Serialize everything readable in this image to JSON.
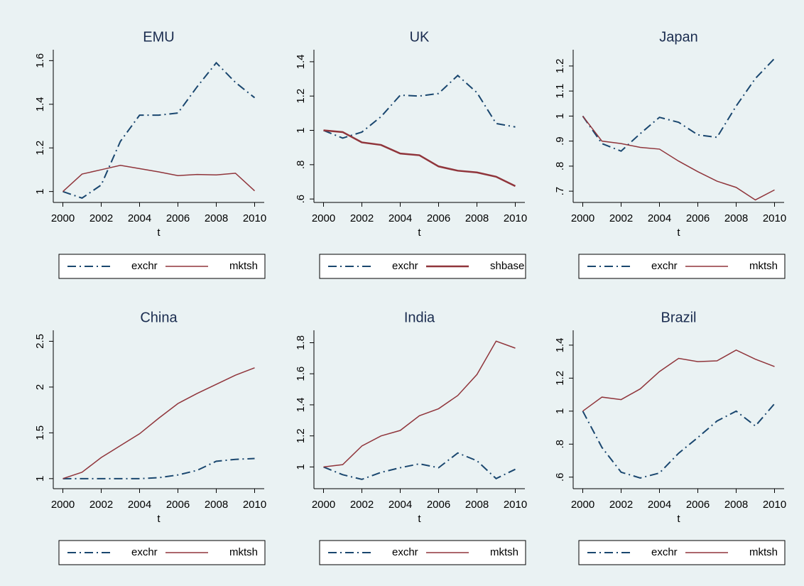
{
  "chart_data": [
    {
      "type": "line",
      "title": "EMU",
      "xlabel": "t",
      "x": [
        2000,
        2001,
        2002,
        2003,
        2004,
        2005,
        2006,
        2007,
        2008,
        2009,
        2010
      ],
      "series": [
        {
          "name": "exchr",
          "color": "#1a476f",
          "style": "dashdot",
          "values": [
            1.0,
            0.97,
            1.03,
            1.23,
            1.35,
            1.35,
            1.36,
            1.48,
            1.59,
            1.5,
            1.43
          ]
        },
        {
          "name": "mktsh",
          "color": "#90353b",
          "style": "solid",
          "values": [
            1.0,
            1.08,
            1.1,
            1.12,
            1.105,
            1.09,
            1.073,
            1.078,
            1.076,
            1.084,
            1.003
          ]
        }
      ],
      "xlim": [
        1999.5,
        2010.5
      ],
      "ylim": [
        0.95,
        1.65
      ],
      "xticks": [
        2000,
        2002,
        2004,
        2006,
        2008,
        2010
      ],
      "yticks": [
        1,
        1.2,
        1.4,
        1.6
      ]
    },
    {
      "type": "line",
      "title": "UK",
      "xlabel": "t",
      "x": [
        2000,
        2001,
        2002,
        2003,
        2004,
        2005,
        2006,
        2007,
        2008,
        2009,
        2010
      ],
      "series": [
        {
          "name": "exchr",
          "color": "#1a476f",
          "style": "dashdot",
          "values": [
            1.0,
            0.955,
            0.99,
            1.08,
            1.205,
            1.2,
            1.215,
            1.32,
            1.22,
            1.04,
            1.02
          ]
        },
        {
          "name": "shbase",
          "color": "#90353b",
          "style": "thick",
          "values": [
            1.0,
            0.99,
            0.93,
            0.915,
            0.865,
            0.855,
            0.79,
            0.765,
            0.755,
            0.73,
            0.675
          ]
        }
      ],
      "xlim": [
        1999.5,
        2010.5
      ],
      "ylim": [
        0.58,
        1.47
      ],
      "xticks": [
        2000,
        2002,
        2004,
        2006,
        2008,
        2010
      ],
      "yticks": [
        {
          "value": 0.6,
          "label": ".6"
        },
        {
          "value": 0.8,
          "label": ".8"
        },
        1,
        1.2,
        1.4
      ]
    },
    {
      "type": "line",
      "title": "Japan",
      "xlabel": "t",
      "x": [
        2000,
        2001,
        2002,
        2003,
        2004,
        2005,
        2006,
        2007,
        2008,
        2009,
        2010
      ],
      "series": [
        {
          "name": "exchr",
          "color": "#1a476f",
          "style": "dashdot",
          "values": [
            1.0,
            0.89,
            0.86,
            0.93,
            0.995,
            0.975,
            0.925,
            0.915,
            1.04,
            1.15,
            1.23
          ]
        },
        {
          "name": "mktsh",
          "color": "#90353b",
          "style": "solid",
          "values": [
            1.0,
            0.9,
            0.89,
            0.875,
            0.868,
            0.82,
            0.778,
            0.74,
            0.715,
            0.665,
            0.705
          ]
        }
      ],
      "xlim": [
        1999.5,
        2010.5
      ],
      "ylim": [
        0.655,
        1.265
      ],
      "xticks": [
        2000,
        2002,
        2004,
        2006,
        2008,
        2010
      ],
      "yticks": [
        {
          "value": 0.7,
          "label": ".7"
        },
        {
          "value": 0.8,
          "label": ".8"
        },
        {
          "value": 0.9,
          "label": ".9"
        },
        1,
        1.1,
        1.2
      ]
    },
    {
      "type": "line",
      "title": "China",
      "xlabel": "t",
      "x": [
        2000,
        2001,
        2002,
        2003,
        2004,
        2005,
        2006,
        2007,
        2008,
        2009,
        2010
      ],
      "series": [
        {
          "name": "exchr",
          "color": "#1a476f",
          "style": "dashdot",
          "values": [
            1,
            1,
            1,
            1,
            1,
            1.01,
            1.04,
            1.09,
            1.19,
            1.21,
            1.22
          ]
        },
        {
          "name": "mktsh",
          "color": "#90353b",
          "style": "solid",
          "values": [
            1,
            1.07,
            1.23,
            1.36,
            1.49,
            1.66,
            1.82,
            1.93,
            2.03,
            2.13,
            2.21
          ]
        }
      ],
      "xlim": [
        1999.5,
        2010.5
      ],
      "ylim": [
        0.89,
        2.62
      ],
      "xticks": [
        2000,
        2002,
        2004,
        2006,
        2008,
        2010
      ],
      "yticks": [
        1,
        1.5,
        2,
        2.5
      ]
    },
    {
      "type": "line",
      "title": "India",
      "xlabel": "t",
      "x": [
        2000,
        2001,
        2002,
        2003,
        2004,
        2005,
        2006,
        2007,
        2008,
        2009,
        2010
      ],
      "series": [
        {
          "name": "exchr",
          "color": "#1a476f",
          "style": "dashdot",
          "values": [
            1.0,
            0.95,
            0.92,
            0.965,
            0.995,
            1.02,
            0.995,
            1.09,
            1.04,
            0.925,
            0.985
          ]
        },
        {
          "name": "mktsh",
          "color": "#90353b",
          "style": "solid",
          "values": [
            1.0,
            1.015,
            1.135,
            1.2,
            1.235,
            1.33,
            1.375,
            1.46,
            1.595,
            1.81,
            1.765
          ]
        }
      ],
      "xlim": [
        1999.5,
        2010.5
      ],
      "ylim": [
        0.86,
        1.88
      ],
      "xticks": [
        2000,
        2002,
        2004,
        2006,
        2008,
        2010
      ],
      "yticks": [
        1,
        1.2,
        1.4,
        1.6,
        1.8
      ]
    },
    {
      "type": "line",
      "title": "Brazil",
      "xlabel": "t",
      "x": [
        2000,
        2001,
        2002,
        2003,
        2004,
        2005,
        2006,
        2007,
        2008,
        2009,
        2010
      ],
      "series": [
        {
          "name": "exchr",
          "color": "#1a476f",
          "style": "dashdot",
          "values": [
            1.0,
            0.78,
            0.63,
            0.595,
            0.625,
            0.745,
            0.84,
            0.94,
            1.0,
            0.91,
            1.045
          ]
        },
        {
          "name": "mktsh",
          "color": "#90353b",
          "style": "solid",
          "values": [
            1.0,
            1.085,
            1.07,
            1.135,
            1.24,
            1.32,
            1.3,
            1.305,
            1.37,
            1.315,
            1.27
          ]
        }
      ],
      "xlim": [
        1999.5,
        2010.5
      ],
      "ylim": [
        0.53,
        1.49
      ],
      "xticks": [
        2000,
        2002,
        2004,
        2006,
        2008,
        2010
      ],
      "yticks": [
        {
          "value": 0.6,
          "label": ".6"
        },
        {
          "value": 0.8,
          "label": ".8"
        },
        1,
        1.2,
        1.4
      ]
    }
  ]
}
